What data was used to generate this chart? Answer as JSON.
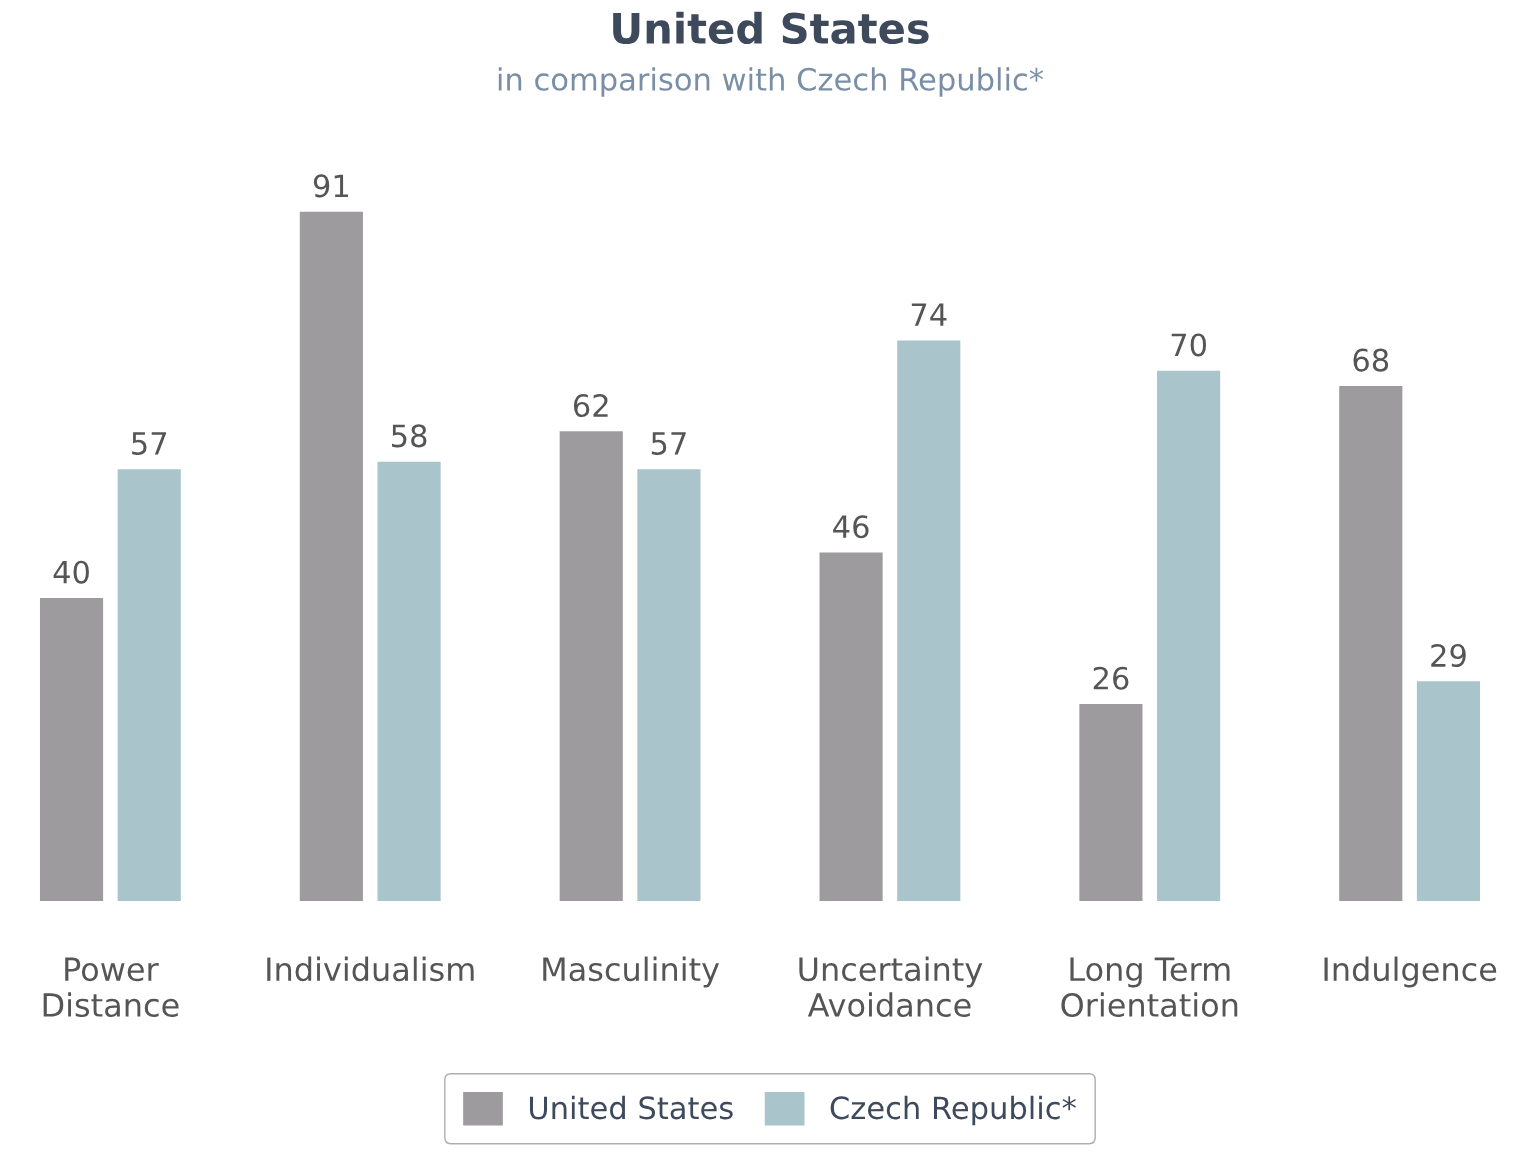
{
  "chart_data": {
    "type": "bar",
    "title": "United States",
    "subtitle": "in comparison with Czech Republic*",
    "categories": [
      "Power\nDistance",
      "Individualism",
      "Masculinity",
      "Uncertainty\nAvoidance",
      "Long Term\nOrientation",
      "Indulgence"
    ],
    "series": [
      {
        "name": "United States",
        "color": "#9d9b9e",
        "values": [
          40,
          91,
          62,
          46,
          26,
          68
        ]
      },
      {
        "name": "Czech Republic*",
        "color": "#a9c4ca",
        "values": [
          57,
          58,
          57,
          74,
          70,
          29
        ]
      }
    ],
    "data_labels": true,
    "legend": "bottom",
    "grid": false
  }
}
